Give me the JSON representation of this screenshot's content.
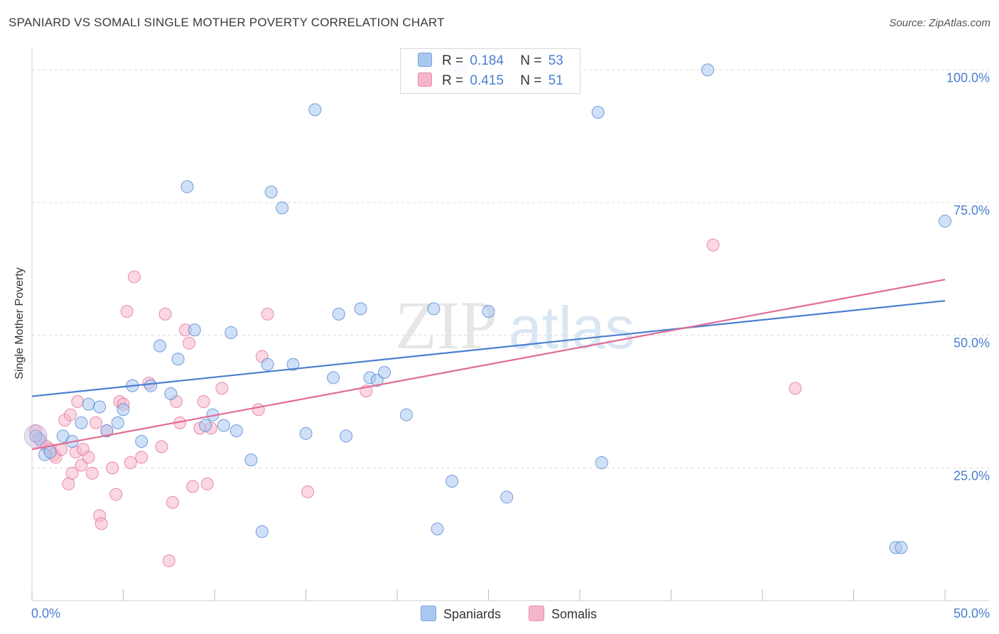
{
  "header": {
    "title": "SPANIARD VS SOMALI SINGLE MOTHER POVERTY CORRELATION CHART",
    "source": "Source: ZipAtlas.com"
  },
  "watermark": {
    "part1": "ZIP",
    "part2": "atlas"
  },
  "legend": {
    "rows": [
      {
        "r_label": "R =",
        "r_value": "0.184",
        "n_label": "N =",
        "n_value": "53",
        "color": "#a9c8f0"
      },
      {
        "r_label": "R =",
        "r_value": "0.415",
        "n_label": "N =",
        "n_value": "51",
        "color": "#f5b6c9"
      }
    ]
  },
  "bottom_legend": {
    "items": [
      {
        "label": "Spaniards",
        "color": "#a9c8f0"
      },
      {
        "label": "Somalis",
        "color": "#f5b6c9"
      }
    ]
  },
  "chart_data": {
    "type": "scatter",
    "title": "SPANIARD VS SOMALI SINGLE MOTHER POVERTY CORRELATION CHART",
    "xlabel": "",
    "ylabel": "Single Mother Poverty",
    "xlim": [
      0,
      50
    ],
    "ylim": [
      0,
      103
    ],
    "x_tick_labels": [
      "0.0%",
      "50.0%"
    ],
    "y_ticks": [
      {
        "value": 25,
        "label": "25.0%"
      },
      {
        "value": 50,
        "label": "50.0%"
      },
      {
        "value": 75,
        "label": "75.0%"
      },
      {
        "value": 100,
        "label": "100.0%"
      }
    ],
    "grid": "horizontal dashed",
    "legend_position": "top-center",
    "series": [
      {
        "name": "Spaniards",
        "color": "#4a7fd0",
        "fill": "#a9c8f0",
        "trend": {
          "x": [
            0,
            50
          ],
          "y": [
            38.5,
            56.5
          ]
        },
        "points": [
          [
            0.4,
            30.5
          ],
          [
            0.7,
            27.5
          ],
          [
            1.0,
            28.0
          ],
          [
            1.7,
            31.0
          ],
          [
            2.2,
            30.0
          ],
          [
            2.7,
            33.5
          ],
          [
            3.1,
            37.0
          ],
          [
            3.7,
            36.5
          ],
          [
            4.1,
            32.0
          ],
          [
            4.7,
            33.5
          ],
          [
            5.0,
            36.0
          ],
          [
            5.5,
            40.5
          ],
          [
            6.0,
            30.0
          ],
          [
            6.5,
            40.5
          ],
          [
            7.0,
            48.0
          ],
          [
            7.6,
            39.0
          ],
          [
            8.0,
            45.5
          ],
          [
            8.5,
            78.0
          ],
          [
            8.9,
            51.0
          ],
          [
            9.5,
            33.0
          ],
          [
            9.9,
            35.0
          ],
          [
            10.5,
            33.0
          ],
          [
            10.9,
            50.5
          ],
          [
            11.2,
            32.0
          ],
          [
            12.0,
            26.5
          ],
          [
            12.6,
            13.0
          ],
          [
            12.9,
            44.5
          ],
          [
            13.1,
            77.0
          ],
          [
            13.7,
            74.0
          ],
          [
            14.3,
            44.5
          ],
          [
            15.0,
            31.5
          ],
          [
            15.5,
            92.5
          ],
          [
            16.5,
            42.0
          ],
          [
            16.8,
            54.0
          ],
          [
            17.2,
            31.0
          ],
          [
            18.0,
            55.0
          ],
          [
            18.5,
            42.0
          ],
          [
            18.9,
            41.5
          ],
          [
            19.3,
            43.0
          ],
          [
            20.5,
            35.0
          ],
          [
            22.0,
            55.0
          ],
          [
            22.2,
            13.5
          ],
          [
            23.0,
            22.5
          ],
          [
            23.5,
            100.0
          ],
          [
            25.0,
            54.5
          ],
          [
            26.0,
            19.5
          ],
          [
            31.0,
            92.0
          ],
          [
            31.2,
            26.0
          ],
          [
            37.0,
            100.0
          ],
          [
            47.3,
            10.0
          ],
          [
            47.6,
            10.0
          ],
          [
            50.0,
            71.5
          ],
          [
            0.2,
            31.0
          ]
        ]
      },
      {
        "name": "Somalis",
        "color": "#e06c96",
        "fill": "#f5b6c9",
        "trend": {
          "x": [
            0,
            50
          ],
          "y": [
            28.5,
            60.5
          ]
        },
        "points": [
          [
            0.2,
            32.0
          ],
          [
            0.5,
            30.0
          ],
          [
            0.8,
            29.0
          ],
          [
            1.0,
            28.5
          ],
          [
            1.2,
            27.5
          ],
          [
            1.3,
            27.0
          ],
          [
            1.6,
            28.5
          ],
          [
            1.8,
            34.0
          ],
          [
            2.0,
            22.0
          ],
          [
            2.1,
            35.0
          ],
          [
            2.2,
            24.0
          ],
          [
            2.4,
            28.0
          ],
          [
            2.5,
            37.5
          ],
          [
            2.7,
            25.5
          ],
          [
            2.8,
            28.5
          ],
          [
            3.1,
            27.0
          ],
          [
            3.3,
            24.0
          ],
          [
            3.5,
            33.5
          ],
          [
            3.7,
            16.0
          ],
          [
            3.8,
            14.5
          ],
          [
            4.1,
            32.0
          ],
          [
            4.4,
            25.0
          ],
          [
            4.6,
            20.0
          ],
          [
            4.8,
            37.5
          ],
          [
            5.0,
            37.0
          ],
          [
            5.2,
            54.5
          ],
          [
            5.4,
            26.0
          ],
          [
            5.6,
            61.0
          ],
          [
            6.0,
            27.0
          ],
          [
            6.4,
            41.0
          ],
          [
            7.1,
            29.0
          ],
          [
            7.3,
            54.0
          ],
          [
            7.5,
            7.5
          ],
          [
            7.7,
            18.5
          ],
          [
            7.9,
            37.5
          ],
          [
            8.1,
            33.5
          ],
          [
            8.4,
            51.0
          ],
          [
            8.6,
            48.5
          ],
          [
            8.8,
            21.5
          ],
          [
            9.2,
            32.5
          ],
          [
            9.4,
            37.5
          ],
          [
            9.6,
            22.0
          ],
          [
            9.8,
            32.5
          ],
          [
            10.4,
            40.0
          ],
          [
            12.4,
            36.0
          ],
          [
            12.6,
            46.0
          ],
          [
            12.9,
            54.0
          ],
          [
            15.1,
            20.5
          ],
          [
            18.3,
            39.5
          ],
          [
            37.3,
            67.0
          ],
          [
            41.8,
            40.0
          ]
        ]
      }
    ]
  }
}
